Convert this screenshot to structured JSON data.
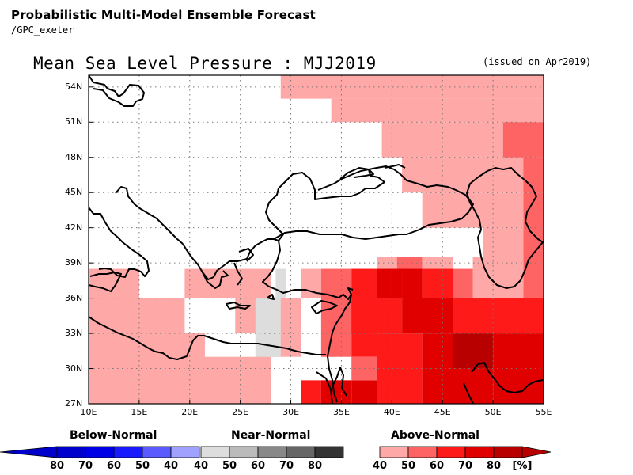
{
  "header": {
    "title": "Probabilistic Multi-Model Ensemble Forecast",
    "source": "/GPC_exeter"
  },
  "map": {
    "title": "Mean Sea Level Pressure : MJJ2019",
    "issued": "(issued on Apr2019)",
    "lon_labels": [
      "10E",
      "15E",
      "20E",
      "25E",
      "30E",
      "35E",
      "40E",
      "45E",
      "50E",
      "55E"
    ],
    "lat_labels": [
      "54N",
      "51N",
      "48N",
      "45N",
      "42N",
      "39N",
      "36N",
      "33N",
      "30N",
      "27N"
    ],
    "lon_range": [
      10,
      55
    ],
    "lat_range": [
      27,
      55
    ]
  },
  "legend": {
    "below": {
      "title": "Below-Normal",
      "labels": [
        "80",
        "70",
        "60",
        "50",
        "40"
      ],
      "colors": [
        "#0000cc",
        "#0000e6",
        "#1a1aff",
        "#5a5aff",
        "#a0a0ff"
      ]
    },
    "near": {
      "title": "Near-Normal",
      "labels": [
        "40",
        "50",
        "60",
        "70",
        "80"
      ],
      "colors": [
        "#dddddd",
        "#bbbbbb",
        "#888888",
        "#666666",
        "#333333"
      ]
    },
    "above": {
      "title": "Above-Normal",
      "labels": [
        "40",
        "50",
        "60",
        "70",
        "80"
      ],
      "colors": [
        "#ffa8a8",
        "#ff6464",
        "#ff1a1a",
        "#e00000",
        "#b80000"
      ]
    },
    "unit": "[%]"
  }
}
